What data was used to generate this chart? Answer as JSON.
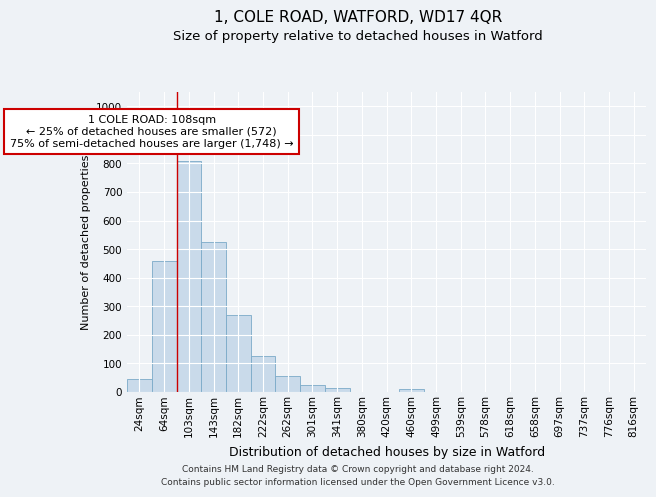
{
  "title": "1, COLE ROAD, WATFORD, WD17 4QR",
  "subtitle": "Size of property relative to detached houses in Watford",
  "xlabel": "Distribution of detached houses by size in Watford",
  "ylabel": "Number of detached properties",
  "footer_line1": "Contains HM Land Registry data © Crown copyright and database right 2024.",
  "footer_line2": "Contains public sector information licensed under the Open Government Licence v3.0.",
  "annotation_line1": "1 COLE ROAD: 108sqm",
  "annotation_line2": "← 25% of detached houses are smaller (572)",
  "annotation_line3": "75% of semi-detached houses are larger (1,748) →",
  "bar_color": "#c9daea",
  "bar_edge_color": "#7baac8",
  "marker_color": "#cc0000",
  "categories": [
    "24sqm",
    "64sqm",
    "103sqm",
    "143sqm",
    "182sqm",
    "222sqm",
    "262sqm",
    "301sqm",
    "341sqm",
    "380sqm",
    "420sqm",
    "460sqm",
    "499sqm",
    "539sqm",
    "578sqm",
    "618sqm",
    "658sqm",
    "697sqm",
    "737sqm",
    "776sqm",
    "816sqm"
  ],
  "values": [
    47,
    460,
    810,
    525,
    270,
    125,
    57,
    25,
    15,
    0,
    0,
    10,
    0,
    0,
    0,
    0,
    0,
    0,
    0,
    0,
    0
  ],
  "marker_bin_index": 2,
  "ylim": [
    0,
    1050
  ],
  "yticks": [
    0,
    100,
    200,
    300,
    400,
    500,
    600,
    700,
    800,
    900,
    1000
  ],
  "bg_color": "#eef2f6",
  "plot_bg_color": "#eef2f6",
  "grid_color": "#ffffff",
  "title_fontsize": 11,
  "subtitle_fontsize": 9.5,
  "xlabel_fontsize": 9,
  "ylabel_fontsize": 8,
  "tick_fontsize": 7.5,
  "footer_fontsize": 6.5,
  "ann_fontsize": 8
}
